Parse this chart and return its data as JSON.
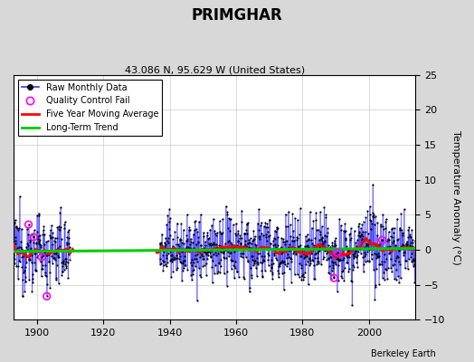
{
  "title": "PRIMGHAR",
  "subtitle": "43.086 N, 95.629 W (United States)",
  "ylabel": "Temperature Anomaly (°C)",
  "credit": "Berkeley Earth",
  "xlim": [
    1893,
    2014
  ],
  "ylim": [
    -10,
    25
  ],
  "yticks": [
    -10,
    -5,
    0,
    5,
    10,
    15,
    20,
    25
  ],
  "xticks": [
    1900,
    1920,
    1940,
    1960,
    1980,
    2000
  ],
  "fig_bg_color": "#d8d8d8",
  "plot_bg_color": "#ffffff",
  "grid_color": "#cccccc",
  "raw_line_color": "#3333ff",
  "raw_marker_color": "#000000",
  "qc_fail_color": "#ff00ff",
  "moving_avg_color": "#ff0000",
  "trend_color": "#00cc00",
  "seed": 12345,
  "start_year": 1893,
  "end_year": 2013,
  "gap_start": 1910,
  "gap_end": 1937
}
